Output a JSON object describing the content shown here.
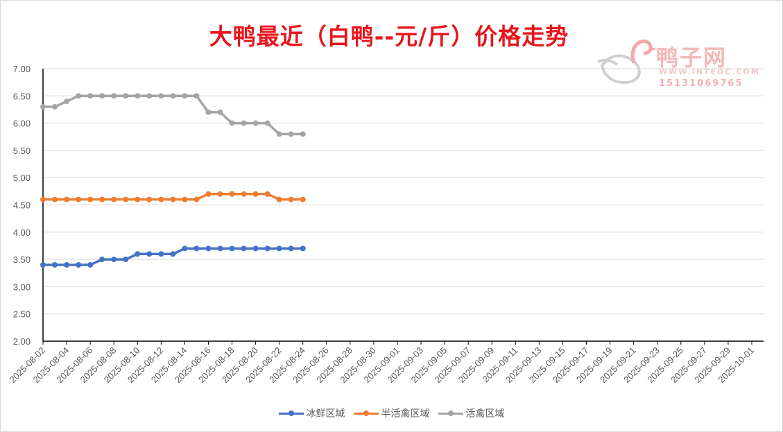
{
  "title": "大鸭最近（白鸭--元/斤）价格走势",
  "watermark": {
    "name": "鸭子网",
    "url": "WWW.INTEDC.COM",
    "phone": "15131069765"
  },
  "chart_data": {
    "type": "line",
    "title": "大鸭最近（白鸭--元/斤）价格走势",
    "x_start": "2025-08-02",
    "x_end": "2025-10-02",
    "x_tick_labels": [
      "2025-08-02",
      "2025-08-04",
      "2025-08-06",
      "2025-08-08",
      "2025-08-10",
      "2025-08-12",
      "2025-08-14",
      "2025-08-16",
      "2025-08-18",
      "2025-08-20",
      "2025-08-22",
      "2025-08-24",
      "2025-08-26",
      "2025-08-28",
      "2025-08-30",
      "2025-09-01",
      "2025-09-03",
      "2025-09-05",
      "2025-09-07",
      "2025-09-09",
      "2025-09-11",
      "2025-09-13",
      "2025-09-15",
      "2025-09-17",
      "2025-09-19",
      "2025-09-21",
      "2025-09-23",
      "2025-09-25",
      "2025-09-27",
      "2025-09-29",
      "2025-10-01"
    ],
    "x": [
      "2025-08-02",
      "2025-08-03",
      "2025-08-04",
      "2025-08-05",
      "2025-08-06",
      "2025-08-07",
      "2025-08-08",
      "2025-08-09",
      "2025-08-10",
      "2025-08-11",
      "2025-08-12",
      "2025-08-13",
      "2025-08-14",
      "2025-08-15",
      "2025-08-16",
      "2025-08-17",
      "2025-08-18",
      "2025-08-19",
      "2025-08-20",
      "2025-08-21",
      "2025-08-22",
      "2025-08-23",
      "2025-08-24"
    ],
    "y_tick_labels": [
      "2.00",
      "2.50",
      "3.00",
      "3.50",
      "4.00",
      "4.50",
      "5.00",
      "5.50",
      "6.00",
      "6.50",
      "7.00"
    ],
    "ylim": [
      2.0,
      7.0
    ],
    "grid": true,
    "legend_position": "bottom",
    "series": [
      {
        "name": "冰鲜区域",
        "color": "#4472c4",
        "values": [
          3.4,
          3.4,
          3.4,
          3.4,
          3.4,
          3.5,
          3.5,
          3.5,
          3.6,
          3.6,
          3.6,
          3.6,
          3.7,
          3.7,
          3.7,
          3.7,
          3.7,
          3.7,
          3.7,
          3.7,
          3.7,
          3.7,
          3.7
        ]
      },
      {
        "name": "半活禽区域",
        "color": "#ed7d31",
        "values": [
          4.6,
          4.6,
          4.6,
          4.6,
          4.6,
          4.6,
          4.6,
          4.6,
          4.6,
          4.6,
          4.6,
          4.6,
          4.6,
          4.6,
          4.7,
          4.7,
          4.7,
          4.7,
          4.7,
          4.7,
          4.6,
          4.6,
          4.6
        ]
      },
      {
        "name": "活禽区域",
        "color": "#a5a5a5",
        "values": [
          6.3,
          6.3,
          6.4,
          6.5,
          6.5,
          6.5,
          6.5,
          6.5,
          6.5,
          6.5,
          6.5,
          6.5,
          6.5,
          6.5,
          6.2,
          6.2,
          6.0,
          6.0,
          6.0,
          6.0,
          5.8,
          5.8,
          5.8
        ]
      }
    ]
  }
}
